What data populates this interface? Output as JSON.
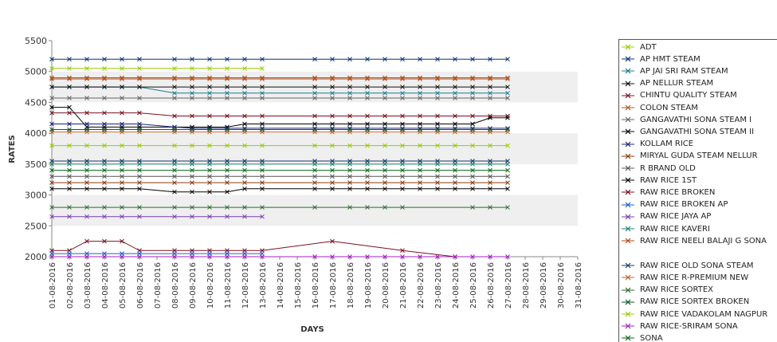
{
  "chart_data": {
    "type": "line",
    "title": "",
    "xlabel": "DAYS",
    "ylabel": "RATES",
    "ylim": [
      2000,
      5500
    ],
    "yticks": [
      2000,
      2500,
      3000,
      3500,
      4000,
      4500,
      5000,
      5500
    ],
    "categories": [
      "01-08-2016",
      "02-08-2016",
      "03-08-2016",
      "04-08-2016",
      "05-08-2016",
      "06-08-2016",
      "07-08-2016",
      "08-08-2016",
      "09-08-2016",
      "10-08-2016",
      "11-08-2016",
      "12-08-2016",
      "13-08-2016",
      "14-08-2016",
      "15-08-2016",
      "16-08-2016",
      "17-08-2016",
      "18-08-2016",
      "19-08-2016",
      "20-08-2016",
      "21-08-2016",
      "22-08-2016",
      "23-08-2016",
      "24-08-2016",
      "25-08-2016",
      "26-08-2016",
      "27-08-2016",
      "28-08-2016",
      "29-08-2016",
      "30-08-2016",
      "31-08-2016"
    ],
    "grid": "alternating horizontal bands",
    "legend_position": "right",
    "series": [
      {
        "name": "ADT",
        "color": "#99cc00",
        "values": [
          5050,
          5050,
          5050,
          5050,
          5050,
          5050,
          null,
          5050,
          5050,
          5050,
          5050,
          5050,
          5050,
          null,
          null,
          null,
          null,
          null,
          null,
          null,
          null,
          null,
          null,
          null,
          null,
          null,
          null,
          null,
          null,
          null,
          null
        ]
      },
      {
        "name": "AP HMT STEAM",
        "color": "#0a2f7a",
        "values": [
          5200,
          5200,
          5200,
          5200,
          5200,
          5200,
          null,
          5200,
          5200,
          5200,
          5200,
          5200,
          5200,
          null,
          null,
          5200,
          5200,
          5200,
          5200,
          5200,
          5200,
          5200,
          5200,
          5200,
          5200,
          5200,
          5200,
          null,
          null,
          null,
          null
        ]
      },
      {
        "name": "AP JAI SRI RAM STEAM",
        "color": "#1a7a8a",
        "values": [
          4750,
          4750,
          4750,
          4750,
          4750,
          4750,
          null,
          4650,
          4650,
          4650,
          4650,
          4650,
          4650,
          null,
          null,
          4650,
          4650,
          4650,
          4650,
          4650,
          4650,
          4650,
          4650,
          4650,
          4650,
          4650,
          4650,
          null,
          null,
          null,
          null
        ]
      },
      {
        "name": "AP NELLUR STEAM",
        "color": "#111111",
        "values": [
          4750,
          4750,
          4750,
          4750,
          4750,
          4750,
          null,
          4750,
          4750,
          4750,
          4750,
          4750,
          4750,
          null,
          null,
          4750,
          4750,
          4750,
          4750,
          4750,
          4750,
          4750,
          4750,
          4750,
          4750,
          4750,
          4750,
          null,
          null,
          null,
          null
        ]
      },
      {
        "name": "CHINTU QUALITY STEAM",
        "color": "#7a1020",
        "values": [
          4330,
          4330,
          4330,
          4330,
          4330,
          4330,
          null,
          4280,
          4280,
          4280,
          4280,
          4280,
          4280,
          null,
          null,
          4280,
          4280,
          4280,
          4280,
          4280,
          4280,
          4280,
          4280,
          4280,
          4280,
          4280,
          4280,
          null,
          null,
          null,
          null
        ]
      },
      {
        "name": "COLON STEAM",
        "color": "#b05a1a",
        "values": [
          4900,
          4900,
          4900,
          4900,
          4900,
          4900,
          null,
          4900,
          4900,
          4900,
          4900,
          4900,
          4900,
          null,
          null,
          4900,
          4900,
          4900,
          4900,
          4900,
          4900,
          4900,
          4900,
          4900,
          4900,
          4900,
          4900,
          null,
          null,
          null,
          null
        ]
      },
      {
        "name": "GANGAVATHI SONA STEAM I",
        "color": "#666666",
        "values": [
          4570,
          4570,
          4570,
          4570,
          4570,
          4570,
          null,
          4570,
          4570,
          4570,
          4570,
          4570,
          4570,
          null,
          null,
          4570,
          4570,
          4570,
          4570,
          4570,
          4570,
          4570,
          4570,
          4570,
          4570,
          4570,
          4570,
          null,
          null,
          null,
          null
        ]
      },
      {
        "name": "GANGAVATHI SONA STEAM II",
        "color": "#000000",
        "values": [
          4420,
          4420,
          4100,
          4100,
          4100,
          4100,
          null,
          4100,
          4100,
          4100,
          4100,
          4150,
          4150,
          null,
          null,
          4150,
          4150,
          4150,
          4150,
          4150,
          4150,
          4150,
          4150,
          4150,
          4150,
          4250,
          4250,
          null,
          null,
          null,
          null
        ]
      },
      {
        "name": "KOLLAM RICE",
        "color": "#1a237e",
        "values": [
          4150,
          4150,
          4150,
          4150,
          4150,
          4150,
          null,
          4100,
          4080,
          4080,
          4080,
          4080,
          4080,
          null,
          null,
          4080,
          4080,
          4080,
          4080,
          4080,
          4080,
          4080,
          4080,
          4080,
          4080,
          4080,
          4080,
          null,
          null,
          null,
          null
        ]
      },
      {
        "name": "MIRYAL GUDA STEAM NELLUR",
        "color": "#8a3a10",
        "values": [
          3200,
          3200,
          3200,
          3200,
          3200,
          3200,
          null,
          3200,
          3200,
          3200,
          3200,
          3200,
          3200,
          null,
          null,
          3200,
          3200,
          3200,
          3200,
          3200,
          3200,
          3200,
          3200,
          3200,
          3200,
          3200,
          3200,
          null,
          null,
          null,
          null
        ]
      },
      {
        "name": "R BRAND OLD",
        "color": "#555555",
        "values": [
          3300,
          3300,
          3300,
          3300,
          3300,
          3300,
          null,
          3300,
          3300,
          3300,
          3300,
          3300,
          3300,
          null,
          null,
          3300,
          3300,
          3300,
          3300,
          3300,
          3300,
          3300,
          3300,
          3300,
          3300,
          3300,
          3300,
          null,
          null,
          null,
          null
        ]
      },
      {
        "name": "RAW RICE 1ST",
        "color": "#000000",
        "values": [
          3100,
          3100,
          3100,
          3100,
          3100,
          3100,
          null,
          3050,
          3050,
          3050,
          3050,
          3100,
          3100,
          null,
          null,
          3100,
          3100,
          3100,
          3100,
          3100,
          3100,
          3100,
          3100,
          3100,
          3100,
          3100,
          3100,
          null,
          null,
          null,
          null
        ]
      },
      {
        "name": "RAW RICE BROKEN",
        "color": "#7a1020",
        "values": [
          2100,
          2100,
          2250,
          2250,
          2250,
          2100,
          null,
          2100,
          2100,
          2100,
          2100,
          2100,
          2100,
          null,
          null,
          null,
          2250,
          null,
          null,
          null,
          2100,
          null,
          null,
          2000,
          null,
          null,
          null,
          null,
          null,
          null,
          null
        ]
      },
      {
        "name": "RAW RICE BROKEN AP",
        "color": "#1f5fc8",
        "values": [
          2050,
          2050,
          2050,
          2050,
          2050,
          2050,
          null,
          2050,
          2050,
          2050,
          2050,
          2050,
          2050,
          null,
          null,
          null,
          null,
          null,
          null,
          null,
          null,
          null,
          null,
          null,
          null,
          null,
          null,
          null,
          null,
          null,
          null
        ]
      },
      {
        "name": "RAW RICE JAYA AP",
        "color": "#7a3ab0",
        "values": [
          2650,
          2650,
          2650,
          2650,
          2650,
          2650,
          null,
          2650,
          2650,
          2650,
          2650,
          2650,
          2650,
          null,
          null,
          null,
          null,
          null,
          null,
          null,
          null,
          null,
          null,
          null,
          null,
          null,
          null,
          null,
          null,
          null,
          null
        ]
      },
      {
        "name": "RAW RICE KAVERI",
        "color": "#1a8a6a",
        "values": [
          3500,
          3500,
          3500,
          3500,
          3500,
          3500,
          null,
          3500,
          3500,
          3500,
          3500,
          3500,
          3500,
          null,
          null,
          3500,
          3500,
          3500,
          3500,
          3500,
          3500,
          3500,
          3500,
          3500,
          3500,
          3500,
          3500,
          null,
          null,
          null,
          null
        ]
      },
      {
        "name": "RAW RICE NEELI BALAJI G SONA",
        "color": "#b04a1a",
        "values": [
          4880,
          4880,
          4880,
          4880,
          4880,
          4880,
          null,
          4880,
          4880,
          4880,
          4880,
          4880,
          4880,
          null,
          null,
          4880,
          4880,
          4880,
          4880,
          4880,
          4880,
          4880,
          4880,
          4880,
          4880,
          4880,
          4880,
          null,
          null,
          null,
          null
        ]
      },
      {
        "name": "RAW RICE OLD SONA STEAM",
        "color": "#1a3a6a",
        "values": [
          3550,
          3550,
          3550,
          3550,
          3550,
          3550,
          null,
          3550,
          3550,
          3550,
          3550,
          3550,
          3550,
          null,
          null,
          3550,
          3550,
          3550,
          3550,
          3550,
          3550,
          3550,
          3550,
          3550,
          3550,
          3550,
          3550,
          null,
          null,
          null,
          null
        ]
      },
      {
        "name": "RAW RICE R-PREMIUM NEW",
        "color": "#c0602a",
        "values": [
          4020,
          4020,
          4020,
          4020,
          4020,
          4020,
          null,
          4020,
          4020,
          4020,
          4020,
          4020,
          4020,
          null,
          null,
          4020,
          4020,
          4020,
          4020,
          4020,
          4020,
          4020,
          4020,
          4020,
          4020,
          4020,
          4020,
          null,
          null,
          null,
          null
        ]
      },
      {
        "name": "RAW RICE SORTEX",
        "color": "#2a6a2a",
        "values": [
          2800,
          2800,
          2800,
          2800,
          2800,
          2800,
          null,
          2800,
          2800,
          2800,
          2800,
          2800,
          2800,
          null,
          null,
          2800,
          null,
          2800,
          2800,
          2800,
          2800,
          null,
          null,
          null,
          2800,
          2800,
          2800,
          null,
          null,
          null,
          null
        ]
      },
      {
        "name": "RAW RICE SORTEX BROKEN",
        "color": "#0a5a2a",
        "values": [
          4060,
          4060,
          4060,
          4060,
          4060,
          4060,
          null,
          4060,
          4060,
          4060,
          4060,
          4060,
          4060,
          null,
          null,
          4060,
          4060,
          4060,
          4060,
          4060,
          4060,
          4060,
          4060,
          4060,
          4060,
          4060,
          4060,
          null,
          null,
          null,
          null
        ]
      },
      {
        "name": "RAW RICE VADAKOLAM NAGPUR",
        "color": "#99cc00",
        "values": [
          3800,
          3800,
          3800,
          3800,
          3800,
          3800,
          null,
          3800,
          3800,
          3800,
          3800,
          3800,
          3800,
          null,
          null,
          3800,
          3800,
          3800,
          3800,
          3800,
          3800,
          3800,
          3800,
          3800,
          3800,
          3800,
          3800,
          null,
          null,
          null,
          null
        ]
      },
      {
        "name": "RAW RICE-SRIRAM SONA",
        "color": "#a020c0",
        "values": [
          2000,
          2000,
          2000,
          2000,
          2000,
          2000,
          null,
          2000,
          2000,
          2000,
          2000,
          2000,
          2000,
          null,
          null,
          2000,
          2000,
          2000,
          2000,
          2000,
          2000,
          2000,
          2000,
          2000,
          2000,
          2000,
          2000,
          null,
          null,
          null,
          null
        ]
      },
      {
        "name": "SONA",
        "color": "#0a6a1a",
        "values": [
          3400,
          3400,
          3400,
          3400,
          3400,
          3400,
          null,
          3400,
          3400,
          3400,
          3400,
          3400,
          3400,
          null,
          null,
          3400,
          3400,
          3400,
          3400,
          3400,
          3400,
          3400,
          3400,
          3400,
          3400,
          3400,
          3400,
          null,
          null,
          null,
          null
        ]
      }
    ]
  }
}
